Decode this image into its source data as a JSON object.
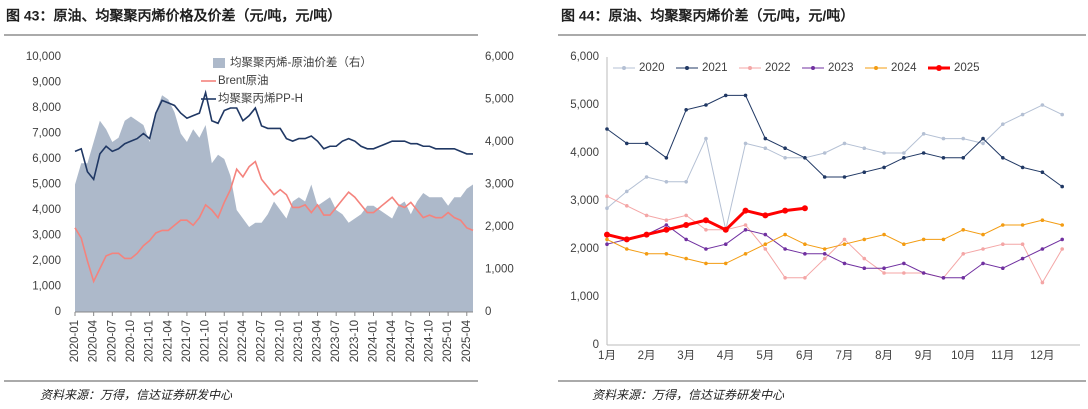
{
  "chart_data": [
    {
      "type": "combo",
      "title": "图 43：原油、均聚聚丙烯价格及价差（元/吨，元/吨）",
      "source": "资料来源：万得，信达证券研发中心",
      "categories": [
        "2020-01",
        null,
        null,
        "2020-04",
        null,
        null,
        "2020-07",
        null,
        null,
        "2020-10",
        null,
        null,
        "2021-01",
        null,
        null,
        "2021-04",
        null,
        null,
        "2021-07",
        null,
        null,
        "2021-10",
        null,
        null,
        "2022-01",
        null,
        null,
        "2022-04",
        null,
        null,
        "2022-07",
        null,
        null,
        "2022-10",
        null,
        null,
        "2023-01",
        null,
        null,
        "2023-04",
        null,
        null,
        "2023-07",
        null,
        null,
        "2023-10",
        null,
        null,
        "2024-01",
        null,
        null,
        "2024-04",
        null,
        null,
        "2024-07",
        null,
        null,
        "2024-10",
        null,
        null,
        "2025-01",
        null,
        null,
        "2025-04",
        null
      ],
      "series": [
        {
          "name": "均聚聚丙烯-原油价差（右）",
          "type": "area",
          "axis": "y2",
          "color": "#adb9ca",
          "values": [
            3000,
            3500,
            3500,
            4000,
            4500,
            4300,
            4000,
            4100,
            4500,
            4600,
            4500,
            4400,
            4000,
            4700,
            5100,
            5000,
            4700,
            4200,
            4000,
            4300,
            4100,
            4400,
            3500,
            3700,
            3600,
            3200,
            2400,
            2200,
            2000,
            2100,
            2100,
            2300,
            2600,
            2400,
            2200,
            2600,
            2700,
            2600,
            3000,
            2500,
            2600,
            2700,
            2400,
            2300,
            2100,
            2200,
            2300,
            2500,
            2500,
            2400,
            2300,
            2200,
            2500,
            2600,
            2300,
            2600,
            2800,
            2700,
            2700,
            2700,
            2500,
            2700,
            2700,
            2900,
            3000
          ]
        },
        {
          "name": "Brent原油",
          "type": "line",
          "color": "#f4837d",
          "values": [
            3300,
            2900,
            2000,
            1200,
            1700,
            2200,
            2300,
            2300,
            2100,
            2100,
            2300,
            2600,
            2800,
            3100,
            3200,
            3200,
            3400,
            3600,
            3600,
            3400,
            3700,
            4200,
            4000,
            3700,
            4300,
            4800,
            5600,
            5300,
            5700,
            5900,
            5200,
            4900,
            4600,
            4800,
            4600,
            4100,
            4100,
            4200,
            3900,
            4200,
            3800,
            3800,
            4100,
            4400,
            4700,
            4500,
            4200,
            3900,
            3900,
            4100,
            4300,
            4500,
            4200,
            4100,
            4300,
            4000,
            3700,
            3800,
            3700,
            3700,
            3900,
            3700,
            3600,
            3300,
            3200
          ]
        },
        {
          "name": "均聚聚丙烯PP-H",
          "type": "line",
          "color": "#203864",
          "values": [
            6300,
            6400,
            5500,
            5200,
            6200,
            6500,
            6300,
            6400,
            6600,
            6700,
            6800,
            7000,
            6800,
            7800,
            8300,
            8200,
            8100,
            7800,
            7600,
            7700,
            7800,
            8600,
            7500,
            7400,
            7900,
            8000,
            8000,
            7500,
            7700,
            8000,
            7300,
            7200,
            7200,
            7200,
            6800,
            6700,
            6800,
            6800,
            6900,
            6700,
            6400,
            6500,
            6500,
            6700,
            6800,
            6700,
            6500,
            6400,
            6400,
            6500,
            6600,
            6700,
            6700,
            6700,
            6600,
            6600,
            6500,
            6500,
            6400,
            6400,
            6400,
            6400,
            6300,
            6200,
            6200
          ]
        }
      ],
      "ylim": [
        0,
        10000
      ],
      "yticks": [
        0,
        {
          "value": 1000,
          "label": "1,000"
        },
        {
          "value": 2000,
          "label": "2,000"
        },
        {
          "value": 3000,
          "label": "3,000"
        },
        {
          "value": 4000,
          "label": "4,000"
        },
        {
          "value": 5000,
          "label": "5,000"
        },
        {
          "value": 6000,
          "label": "6,000"
        },
        {
          "value": 7000,
          "label": "7,000"
        },
        {
          "value": 8000,
          "label": "8,000"
        },
        {
          "value": 9000,
          "label": "9,000"
        },
        {
          "value": 10000,
          "label": "10,000"
        }
      ],
      "y2lim": [
        0,
        6000
      ],
      "y2ticks": [
        0,
        {
          "value": 1000,
          "label": "1,000"
        },
        {
          "value": 2000,
          "label": "2,000"
        },
        {
          "value": 3000,
          "label": "3,000"
        },
        {
          "value": 4000,
          "label": "4,000"
        },
        {
          "value": 5000,
          "label": "5,000"
        },
        {
          "value": 6000,
          "label": "6,000"
        }
      ]
    },
    {
      "type": "line",
      "title": "图 44：原油、均聚聚丙烯价差（元/吨，元/吨）",
      "source": "资料来源：万得，信达证券研发中心",
      "x": [
        1,
        1.5,
        2,
        2.5,
        3,
        3.5,
        4,
        4.5,
        5,
        5.5,
        6,
        6.5,
        7,
        7.5,
        8,
        8.5,
        9,
        9.5,
        10,
        10.5,
        11,
        11.5,
        12,
        12.5
      ],
      "xlim": [
        1,
        12.95
      ],
      "xticks": [
        {
          "value": 1,
          "label": "1月"
        },
        {
          "value": 2,
          "label": "2月"
        },
        {
          "value": 3,
          "label": "3月"
        },
        {
          "value": 4,
          "label": "4月"
        },
        {
          "value": 5,
          "label": "5月"
        },
        {
          "value": 6,
          "label": "6月"
        },
        {
          "value": 7,
          "label": "7月"
        },
        {
          "value": 8,
          "label": "8月"
        },
        {
          "value": 9,
          "label": "9月"
        },
        {
          "value": 10,
          "label": "10月"
        },
        {
          "value": 11,
          "label": "11月"
        },
        {
          "value": 12,
          "label": "12月"
        }
      ],
      "series": [
        {
          "name": "2020",
          "color": "#b4c0d4",
          "values": [
            2850,
            3200,
            3500,
            3400,
            3400,
            4300,
            2400,
            4200,
            4100,
            3900,
            3900,
            4000,
            4200,
            4100,
            4000,
            4000,
            4400,
            4300,
            4300,
            4200,
            4600,
            4800,
            5000,
            4800
          ]
        },
        {
          "name": "2021",
          "color": "#203864",
          "values": [
            4500,
            4200,
            4200,
            3900,
            4900,
            5000,
            5200,
            5200,
            4300,
            4100,
            3900,
            3500,
            3500,
            3600,
            3700,
            3900,
            4000,
            3900,
            3900,
            4300,
            3900,
            3700,
            3600,
            3300
          ]
        },
        {
          "name": "2022",
          "color": "#f4a6a6",
          "values": [
            3100,
            2900,
            2700,
            2600,
            2700,
            2400,
            2400,
            2500,
            2000,
            1400,
            1400,
            1800,
            2200,
            1800,
            1500,
            1500,
            1500,
            1400,
            1900,
            2000,
            2100,
            2100,
            1300,
            2000
          ]
        },
        {
          "name": "2023",
          "color": "#7030a0",
          "values": [
            2100,
            2200,
            2300,
            2500,
            2200,
            2000,
            2100,
            2400,
            2300,
            2000,
            1900,
            1900,
            1700,
            1600,
            1600,
            1700,
            1500,
            1400,
            1400,
            1700,
            1600,
            1800,
            2000,
            2200
          ]
        },
        {
          "name": "2024",
          "color": "#f39c12",
          "values": [
            2200,
            2000,
            1900,
            1900,
            1800,
            1700,
            1700,
            1900,
            2100,
            2300,
            2100,
            2000,
            2100,
            2200,
            2300,
            2100,
            2200,
            2200,
            2400,
            2300,
            2500,
            2500,
            2600,
            2500
          ]
        },
        {
          "name": "2025",
          "color": "#ff0000",
          "values": [
            2300,
            2200,
            2300,
            2400,
            2500,
            2600,
            2400,
            2800,
            2700,
            2800,
            2850,
            null,
            null,
            null,
            null,
            null,
            null,
            null,
            null,
            null,
            null,
            null,
            null,
            null
          ]
        }
      ],
      "ylim": [
        0,
        6000
      ],
      "yticks": [
        0,
        {
          "value": 1000,
          "label": "1,000"
        },
        {
          "value": 2000,
          "label": "2,000"
        },
        {
          "value": 3000,
          "label": "3,000"
        },
        {
          "value": 4000,
          "label": "4,000"
        },
        {
          "value": 5000,
          "label": "5,000"
        },
        {
          "value": 6000,
          "label": "6,000"
        }
      ]
    }
  ]
}
